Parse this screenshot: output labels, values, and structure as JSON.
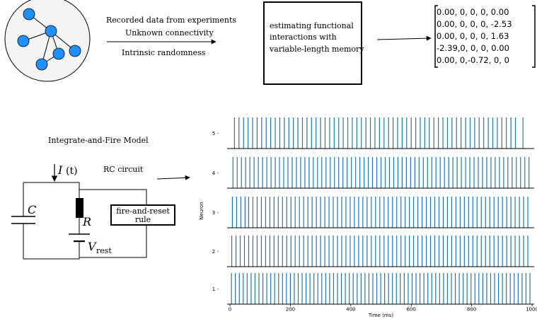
{
  "network": {
    "node_color": "#1e90ff",
    "circle_color": "#f4f4f4",
    "node_count": 6
  },
  "arrow_texts": {
    "line1": "Recorded data from experiments",
    "line2": "Unknown  connectivity",
    "line3": "Intrinsic randomness"
  },
  "estimator_box": {
    "line1": "estimating functional",
    "line2": "interactions with",
    "line3": "variable-length memory"
  },
  "matrix": {
    "rows": [
      "0.00, 0, 0, 0, 0.00",
      "0.00, 0, 0, 0, -2.53",
      "0.00, 0, 0, 0, 1.63",
      "-2.39,0, 0, 0, 0.00",
      "0.00,  0,-0.72, 0, 0"
    ]
  },
  "model": {
    "title": "Integrate-and-Fire Model",
    "current_label": "I",
    "current_arg": "(t)",
    "rc_label": "RC circuit",
    "capacitor_label": "C",
    "resistor_label": "R",
    "voltage_label": "V",
    "voltage_sub": "rest",
    "reset_line1": "fire-and-reset",
    "reset_line2": "rule"
  },
  "chart_data": {
    "type": "raster",
    "xlabel": "Time (ms)",
    "ylabel": "Neuron",
    "xlim": [
      0,
      1000
    ],
    "xticks": [
      0,
      200,
      400,
      600,
      800,
      1000
    ],
    "neurons": [
      5,
      4,
      3,
      2,
      1
    ],
    "spike_color": "#1f77b4",
    "series": [
      {
        "name": "5",
        "spikes": [
          15,
          30,
          45,
          60,
          75,
          90,
          105,
          120,
          135,
          150,
          165,
          180,
          195,
          210,
          225,
          240,
          255,
          270,
          285,
          300,
          315,
          330,
          345,
          360,
          375,
          390,
          405,
          420,
          435,
          450,
          465,
          480,
          495,
          510,
          525,
          540,
          555,
          570,
          585,
          600,
          615,
          630,
          645,
          660,
          675,
          690,
          705,
          720,
          735,
          750,
          765,
          780,
          795,
          810,
          825,
          840,
          855,
          870,
          885,
          900,
          915,
          930,
          945,
          970
        ]
      },
      {
        "name": "4",
        "spikes": [
          10,
          24,
          38,
          52,
          66,
          80,
          94,
          108,
          122,
          136,
          150,
          164,
          178,
          192,
          206,
          220,
          234,
          248,
          262,
          276,
          290,
          304,
          318,
          332,
          346,
          360,
          374,
          388,
          402,
          416,
          430,
          444,
          458,
          472,
          486,
          500,
          514,
          528,
          542,
          556,
          570,
          584,
          598,
          612,
          626,
          640,
          654,
          668,
          682,
          696,
          710,
          724,
          738,
          752,
          766,
          780,
          794,
          808,
          822,
          836,
          850,
          864,
          878,
          892,
          906,
          920,
          934,
          948,
          962,
          976,
          990
        ]
      },
      {
        "name": "3",
        "spikes": [
          8,
          22,
          36,
          50,
          62,
          76,
          90,
          104,
          118,
          132,
          146,
          160,
          174,
          188,
          202,
          216,
          230,
          244,
          258,
          272,
          286,
          300,
          314,
          328,
          342,
          356,
          370,
          384,
          398,
          412,
          426,
          440,
          454,
          468,
          482,
          496,
          510,
          524,
          538,
          552,
          566,
          580,
          594,
          608,
          622,
          636,
          650,
          664,
          678,
          692,
          706,
          720,
          734,
          748,
          762,
          776,
          790,
          804,
          818,
          832,
          846,
          860,
          874,
          888,
          902,
          916,
          930,
          944,
          958,
          972,
          986
        ]
      },
      {
        "name": "2",
        "spikes": [
          6,
          20,
          34,
          48,
          62,
          76,
          90,
          104,
          118,
          132,
          146,
          160,
          174,
          188,
          202,
          216,
          230,
          244,
          258,
          272,
          286,
          300,
          314,
          328,
          342,
          356,
          370,
          384,
          398,
          412,
          426,
          440,
          454,
          468,
          482,
          496,
          510,
          524,
          538,
          552,
          566,
          580,
          594,
          608,
          622,
          636,
          650,
          664,
          678,
          692,
          706,
          720,
          734,
          748,
          762,
          776,
          790,
          804,
          818,
          832,
          846,
          860,
          874,
          888,
          902,
          916,
          930,
          944,
          958,
          972,
          986
        ]
      },
      {
        "name": "1",
        "spikes": [
          5,
          18,
          31,
          44,
          57,
          70,
          83,
          96,
          109,
          122,
          135,
          148,
          161,
          174,
          187,
          200,
          213,
          226,
          239,
          252,
          265,
          278,
          291,
          304,
          317,
          330,
          343,
          356,
          369,
          382,
          395,
          408,
          421,
          434,
          447,
          460,
          473,
          486,
          499,
          512,
          525,
          538,
          551,
          564,
          577,
          590,
          603,
          616,
          629,
          642,
          655,
          668,
          681,
          694,
          707,
          720,
          733,
          746,
          759,
          772,
          785,
          798,
          811,
          824,
          837,
          850,
          863,
          876,
          889,
          902,
          915,
          928,
          941,
          954,
          967,
          980,
          993
        ]
      }
    ]
  }
}
